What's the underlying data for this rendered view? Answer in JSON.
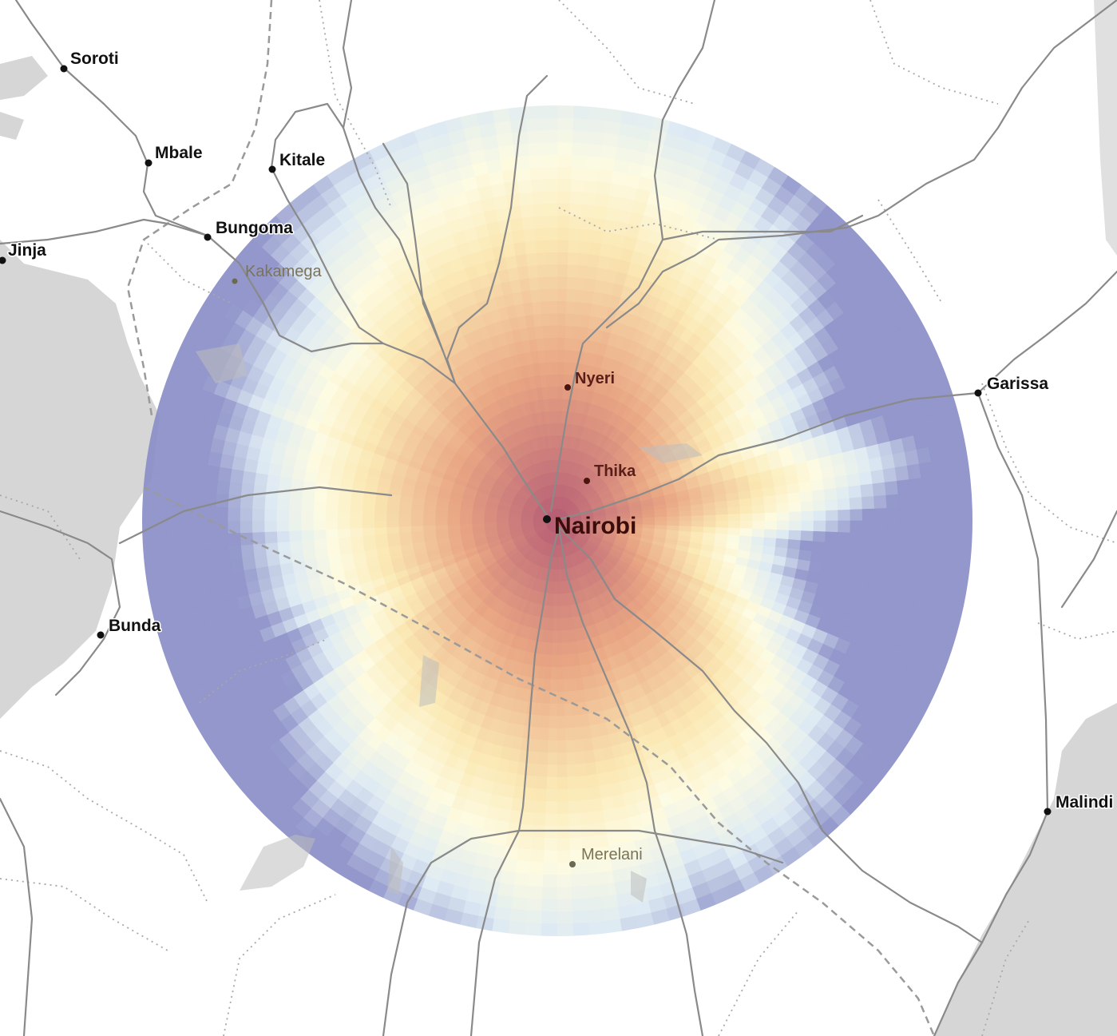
{
  "map": {
    "center_city": "Nairobi",
    "colors": {
      "water": "#d4d4d4",
      "road": "#8a8a8a",
      "border": "#9a9a9a",
      "scale_high": "#b0506a",
      "scale_mid_high": "#e8a07a",
      "scale_mid": "#fbe7ae",
      "scale_neutral": "#fdfbe0",
      "scale_mid_low": "#dbe9f3",
      "scale_low": "#8a8fc7"
    },
    "cities": [
      {
        "name": "Soroti",
        "style": "major"
      },
      {
        "name": "Mbale",
        "style": "major"
      },
      {
        "name": "Kitale",
        "style": "major"
      },
      {
        "name": "Bungoma",
        "style": "major"
      },
      {
        "name": "Jinja",
        "style": "major"
      },
      {
        "name": "Kakamega",
        "style": "faded"
      },
      {
        "name": "Nyeri",
        "style": "inside"
      },
      {
        "name": "Thika",
        "style": "inside"
      },
      {
        "name": "Nairobi",
        "style": "capital"
      },
      {
        "name": "Garissa",
        "style": "major"
      },
      {
        "name": "Bunda",
        "style": "major"
      },
      {
        "name": "Merelani",
        "style": "faded"
      },
      {
        "name": "Malindi",
        "style": "major"
      }
    ]
  }
}
